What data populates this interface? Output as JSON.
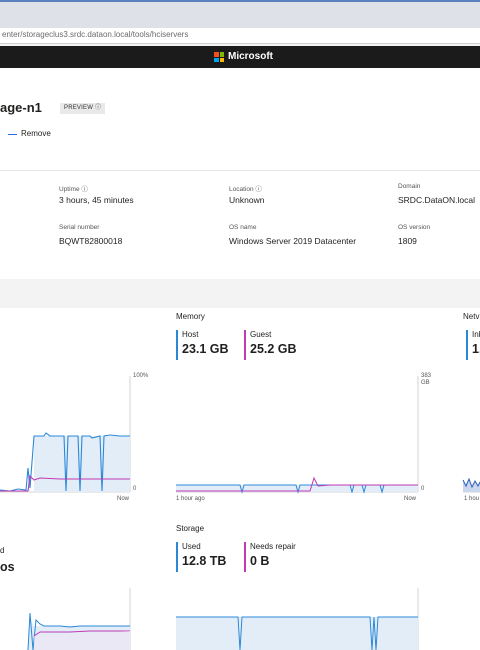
{
  "browser": {
    "address": "enter/storageclus3.srdc.dataon.local/tools/hciservers"
  },
  "brand": {
    "name": "Microsoft",
    "logo_colors": [
      "#f25022",
      "#7fba00",
      "#00a4ef",
      "#ffb900"
    ]
  },
  "header": {
    "title": "age-n1",
    "badge": "PREVIEW ⓘ",
    "remove_label": "Remove"
  },
  "info": {
    "uptime_label": "Uptime  ⓘ",
    "uptime_value": "3 hours, 45 minutes",
    "location_label": "Location  ⓘ",
    "location_value": "Unknown",
    "domain_label": "Domain",
    "domain_value": "SRDC.DataON.local",
    "serial_label": "Serial number",
    "serial_value": "BQWT82800018",
    "osname_label": "OS name",
    "osname_value": "Windows Server 2019 Datacenter",
    "osversion_label": "OS version",
    "osversion_value": "1809"
  },
  "charts": {
    "cpu": {
      "y_max_label": "100%",
      "y_min_label": "0",
      "x_end_label": "Now"
    },
    "memory": {
      "title": "Memory",
      "host_label": "Host",
      "host_value": "23.1 GB",
      "guest_label": "Guest",
      "guest_value": "25.2 GB",
      "y_max_label": "383\nGB",
      "y_min_label": "0",
      "x_start_label": "1 hour ago",
      "x_end_label": "Now"
    },
    "network": {
      "title": "Netv",
      "inbound_label": "Inb",
      "inbound_value": "1.",
      "x_start_label": "1 hou"
    },
    "disk": {
      "partial_label": "d",
      "partial_value": "os"
    },
    "storage": {
      "title": "Storage",
      "used_label": "Used",
      "used_value": "12.8 TB",
      "repair_label": "Needs repair",
      "repair_value": "0 B"
    }
  },
  "colors": {
    "blue_series": "#2b88d8",
    "pink_series": "#c239b3",
    "fill": "#e3edf8"
  }
}
